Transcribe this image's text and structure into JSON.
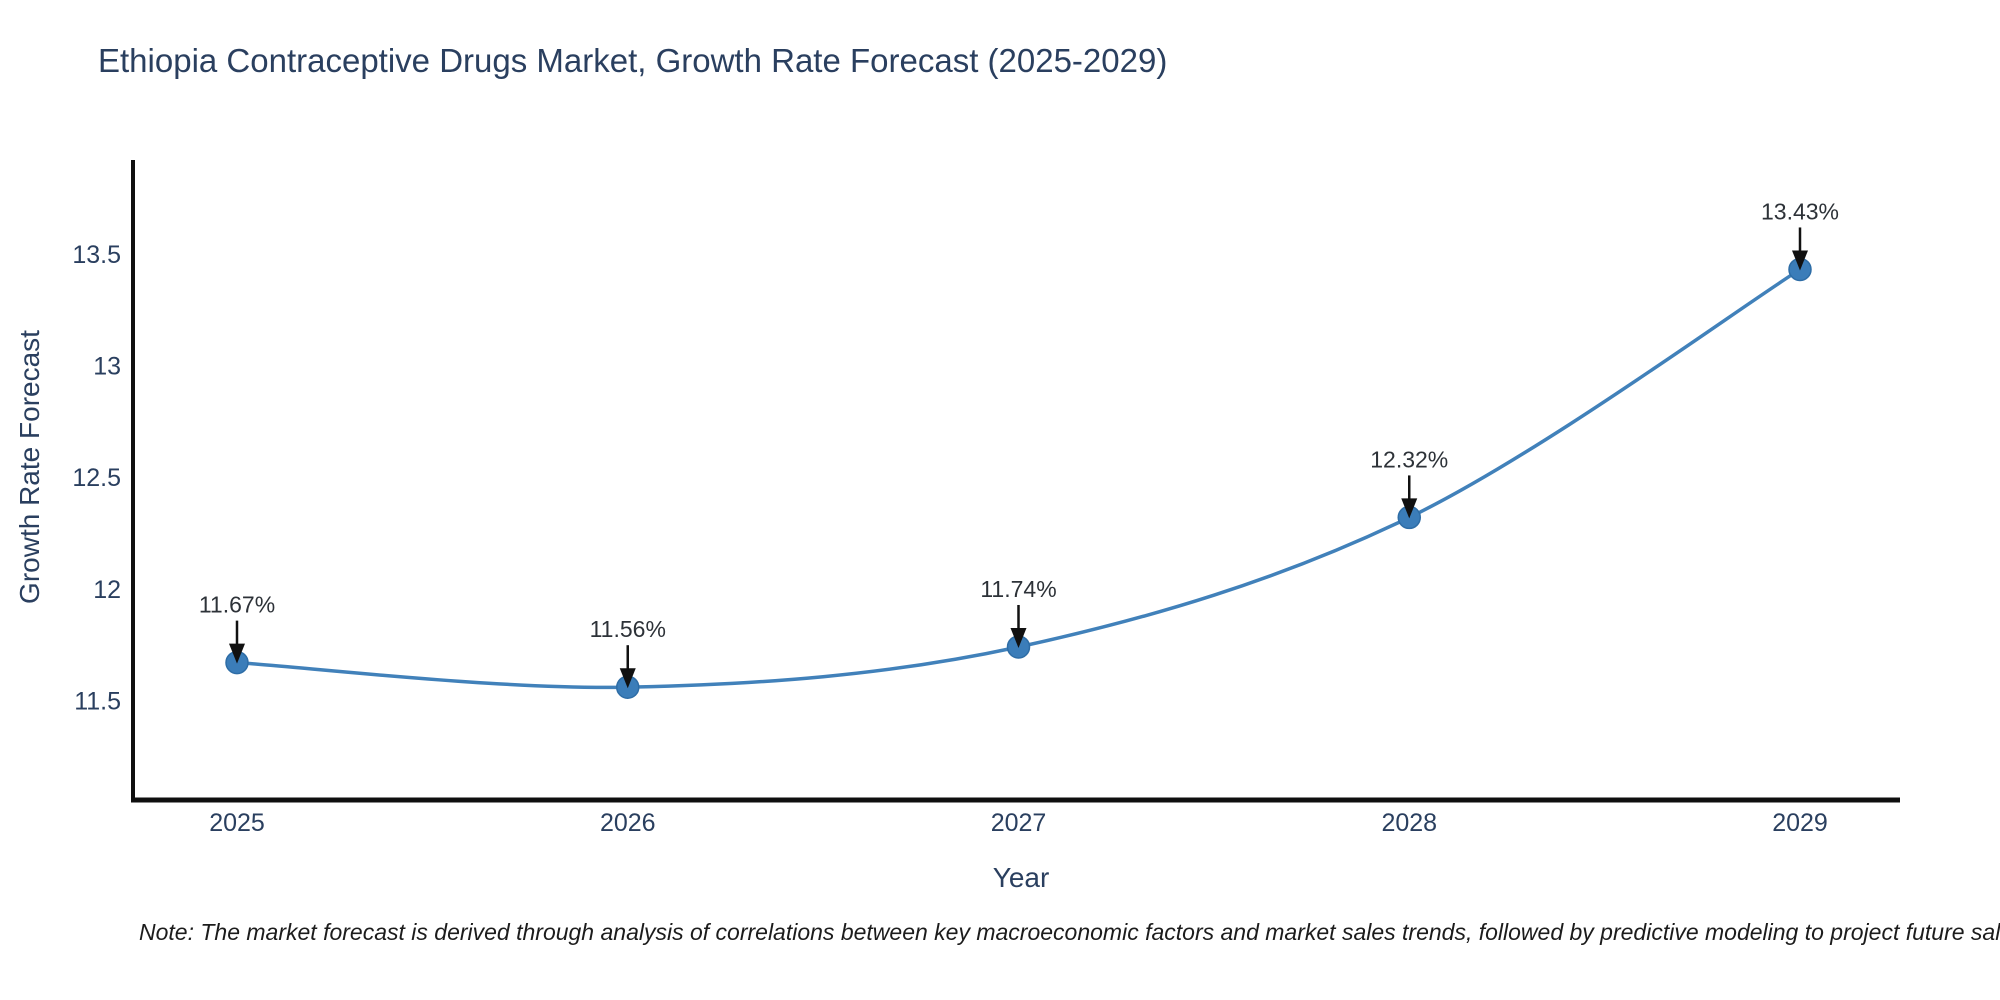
{
  "page": {
    "background": "#ffffff"
  },
  "header": {
    "title": "Ethiopia Contraceptive Drugs Market, Growth Rate Forecast (2025-2029)"
  },
  "chart_data": {
    "type": "line",
    "title": "Ethiopia Contraceptive Drugs Market, Growth Rate Forecast (2025-2029)",
    "categories": [
      "2025",
      "2026",
      "2027",
      "2028",
      "2029"
    ],
    "values": [
      11.67,
      11.56,
      11.74,
      12.32,
      13.43
    ],
    "point_labels": [
      "11.67%",
      "11.56%",
      "11.74%",
      "12.32%",
      "13.43%"
    ],
    "xlabel": "Year",
    "ylabel": "Growth Rate Forecast",
    "ylim": [
      11.055,
      13.92
    ],
    "yticks": [
      11.5,
      12,
      12.5,
      13,
      13.5
    ],
    "ytick_labels": [
      "11.5",
      "12",
      "12.5",
      "13",
      "13.5"
    ],
    "grid": false,
    "legend_position": "none",
    "line_shape": "spline",
    "colors": {
      "line": "#4181ba",
      "marker_fill": "#3b7db9",
      "marker_edge": "#2e6da6",
      "axis_line": "#0f0f0f",
      "tick_text": "#2a3f5f",
      "annotation_text": "#2d3238",
      "annotation_arrow": "#111111",
      "title_text": "#2a3f5f"
    }
  },
  "footer": {
    "note": "Note: The market forecast is derived through analysis of correlations between key macroeconomic factors and market sales trends, followed by predictive modeling to project future sales."
  }
}
